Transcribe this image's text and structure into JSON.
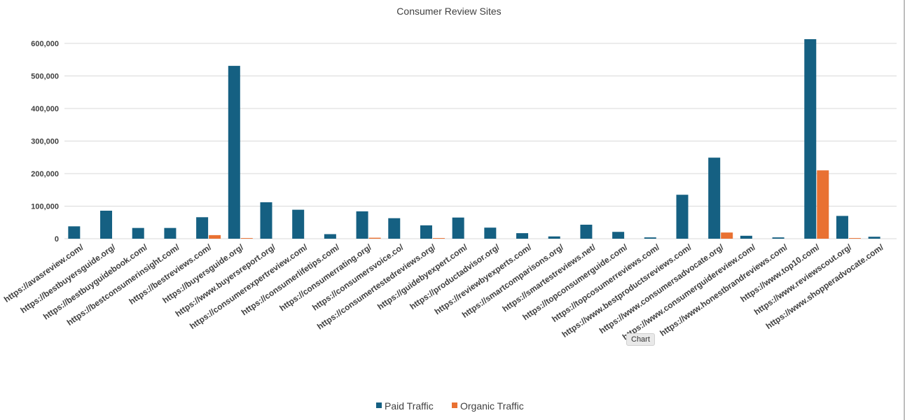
{
  "chart_data": {
    "type": "bar",
    "title": "Consumer Review Sites",
    "xlabel": "",
    "ylabel": "",
    "ylim": [
      0,
      600000
    ],
    "yticks": [
      0,
      100000,
      200000,
      300000,
      400000,
      500000,
      600000
    ],
    "ytick_labels": [
      "0",
      "100,000",
      "200,000",
      "300,000",
      "400,000",
      "500,000",
      "600,000"
    ],
    "grid": true,
    "legend_position": "bottom",
    "categories": [
      "https://avasreview.com/",
      "https://bestbuyersguide.org/",
      "https://bestbuyguidebook.com/",
      "https://bestconsumerinsight.com/",
      "https://bestreviews.com/",
      "https://buyersguide.org/",
      "https://www.buyersreport.org/",
      "https://consumerexpertreview.com/",
      "https://consumerlifetips.com/",
      "https://consumerrating.org/",
      "https://consumersvoice.co/",
      "https://consumertestedreviews.org/",
      "https://guidebyexpert.com/",
      "https://productadvisor.org/",
      "https://reviewbyexperts.com/",
      "https://smartcomparisons.org/",
      "https://smartestreviews.net/",
      "https://topconsumerguide.com/",
      "https://topcosumerreviews.com/",
      "https://www.bestproductsreviews.com/",
      "https://www.consumersadvocate.org/",
      "https://www.consumerguidereview.com/",
      "https://www.honestbrandreviews.com/",
      "https://www.top10.com/",
      "https://www.reviewscout.org/",
      "https://www.shopperadvocate.com/"
    ],
    "series": [
      {
        "name": "Paid Traffic",
        "color": "#156082",
        "values": [
          38000,
          86000,
          33000,
          33000,
          66000,
          531000,
          112000,
          89000,
          14000,
          84000,
          63000,
          41000,
          65000,
          34000,
          17000,
          7000,
          43000,
          21000,
          4000,
          135000,
          249000,
          9000,
          4000,
          613000,
          70000,
          6000
        ]
      },
      {
        "name": "Organic Traffic",
        "color": "#E97132",
        "values": [
          0,
          0,
          0,
          0,
          11000,
          2000,
          0,
          0,
          0,
          3000,
          0,
          2000,
          0,
          0,
          0,
          0,
          0,
          0,
          0,
          0,
          19000,
          0,
          0,
          210000,
          2000,
          0
        ]
      }
    ]
  },
  "tooltip": {
    "text": "Chart"
  }
}
